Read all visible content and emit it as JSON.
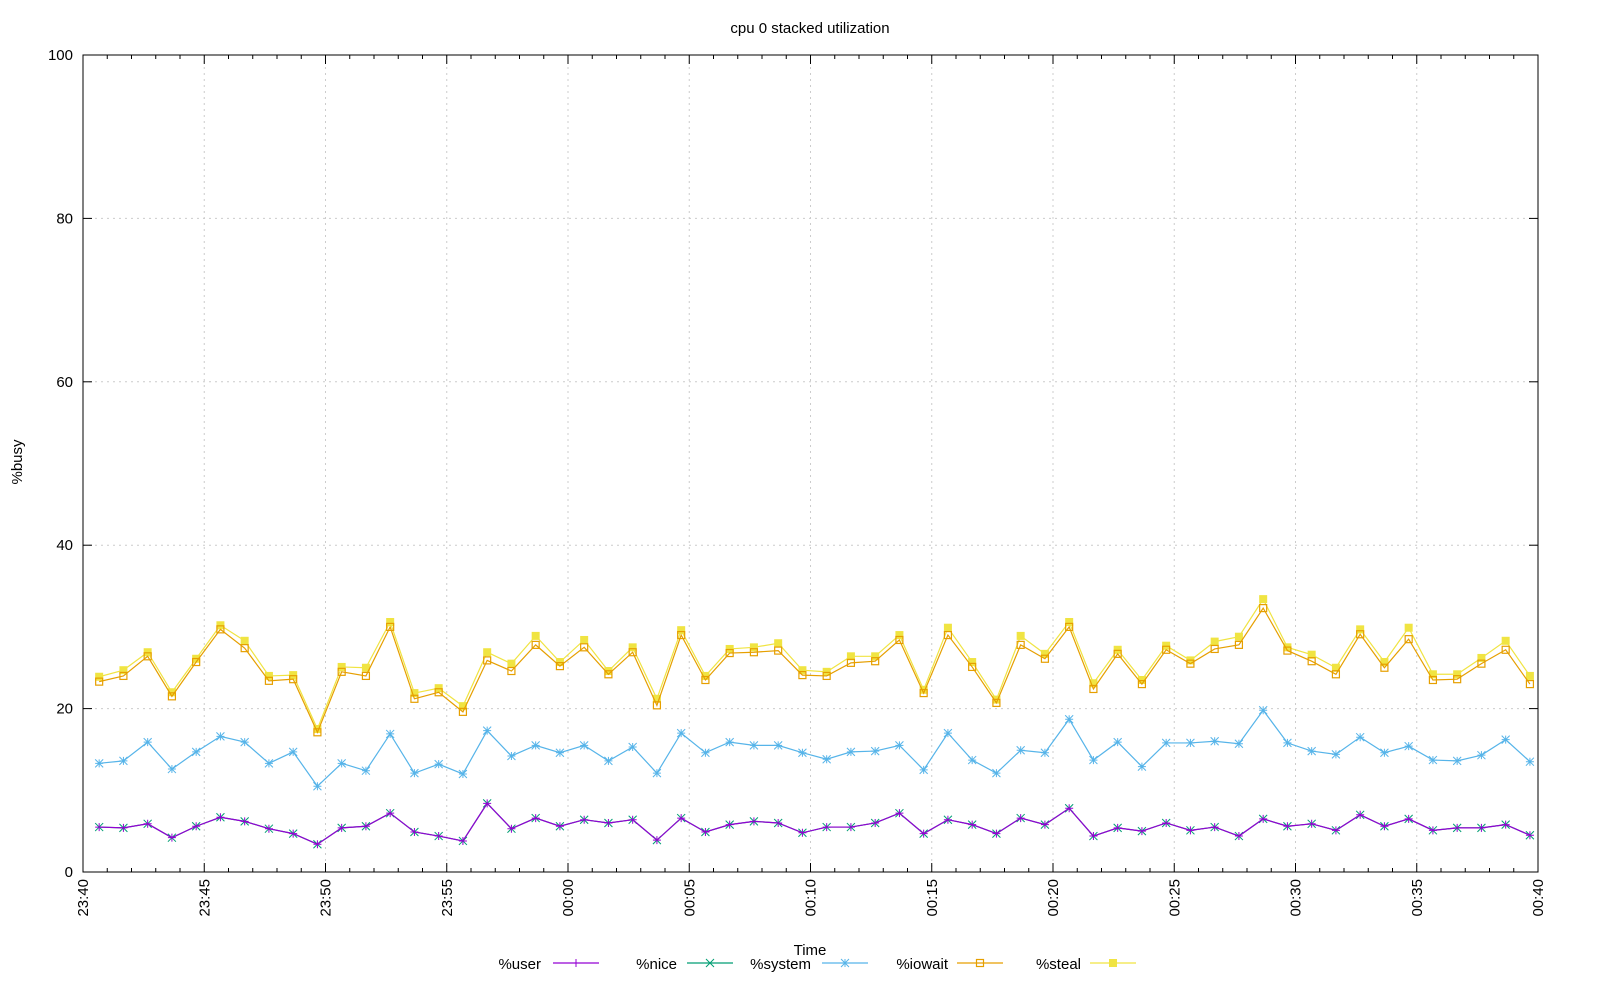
{
  "chart_data": {
    "type": "line",
    "title": "cpu 0 stacked utilization",
    "xlabel": "Time",
    "ylabel": "%busy",
    "ylim": [
      0,
      100
    ],
    "yticks": [
      "0",
      "20",
      "40",
      "60",
      "80",
      "100"
    ],
    "xlim_minutes_from_start": [
      0,
      60
    ],
    "xticks": [
      "23:40",
      "23:45",
      "23:50",
      "23:55",
      "00:00",
      "00:05",
      "00:10",
      "00:15",
      "00:20",
      "00:25",
      "00:30",
      "00:35",
      "00:40"
    ],
    "x_start": "23:40:40",
    "x_step_seconds": 60,
    "grid": true,
    "stacked": true,
    "values_are_cumulative": true,
    "legend_placement": "bottom",
    "series": [
      {
        "name": "%user",
        "color": "#9400d3",
        "marker": "plus",
        "values": [
          5.5,
          5.4,
          5.9,
          4.2,
          5.6,
          6.7,
          6.2,
          5.3,
          4.7,
          3.4,
          5.4,
          5.6,
          7.2,
          4.9,
          4.4,
          3.8,
          8.4,
          5.3,
          6.6,
          5.6,
          6.4,
          6.0,
          6.4,
          3.9,
          6.6,
          4.9,
          5.8,
          6.2,
          6.0,
          4.8,
          5.5,
          5.5,
          6.0,
          7.2,
          4.7,
          6.4,
          5.8,
          4.7,
          6.6,
          5.8,
          7.8,
          4.4,
          5.4,
          5.0,
          6.0,
          5.1,
          5.5,
          4.4,
          6.5,
          5.6,
          5.9,
          5.1,
          7.0,
          5.6,
          6.5,
          5.1,
          5.4,
          5.4,
          5.8,
          4.5
        ]
      },
      {
        "name": "%nice",
        "color": "#009e73",
        "marker": "cross",
        "values": [
          5.5,
          5.4,
          5.9,
          4.2,
          5.6,
          6.7,
          6.2,
          5.3,
          4.7,
          3.4,
          5.4,
          5.6,
          7.2,
          4.9,
          4.4,
          3.8,
          8.4,
          5.3,
          6.6,
          5.6,
          6.4,
          6.0,
          6.4,
          3.9,
          6.6,
          4.9,
          5.8,
          6.2,
          6.0,
          4.8,
          5.5,
          5.5,
          6.0,
          7.2,
          4.7,
          6.4,
          5.8,
          4.7,
          6.6,
          5.8,
          7.8,
          4.4,
          5.4,
          5.0,
          6.0,
          5.1,
          5.5,
          4.4,
          6.5,
          5.6,
          5.9,
          5.1,
          7.0,
          5.6,
          6.5,
          5.1,
          5.4,
          5.4,
          5.8,
          4.5
        ]
      },
      {
        "name": "%system",
        "color": "#56b4e9",
        "marker": "star",
        "values": [
          13.3,
          13.6,
          15.9,
          12.6,
          14.7,
          16.6,
          15.9,
          13.3,
          14.7,
          10.5,
          13.3,
          12.4,
          16.9,
          12.1,
          13.2,
          12.0,
          17.3,
          14.2,
          15.5,
          14.6,
          15.5,
          13.6,
          15.3,
          12.1,
          17.0,
          14.6,
          15.9,
          15.5,
          15.5,
          14.6,
          13.8,
          14.7,
          14.8,
          15.5,
          12.5,
          17.0,
          13.7,
          12.1,
          14.9,
          14.6,
          18.7,
          13.7,
          15.9,
          12.9,
          15.8,
          15.8,
          16.0,
          15.7,
          19.8,
          15.8,
          14.8,
          14.4,
          16.5,
          14.6,
          15.4,
          13.7,
          13.6,
          14.3,
          16.2,
          13.5
        ]
      },
      {
        "name": "%iowait",
        "color": "#e69f00",
        "marker": "open-square",
        "values": [
          23.3,
          24.0,
          26.4,
          21.5,
          25.7,
          29.7,
          27.4,
          23.4,
          23.6,
          17.1,
          24.5,
          24.0,
          30.0,
          21.2,
          22.0,
          19.6,
          25.9,
          24.6,
          27.8,
          25.2,
          27.5,
          24.2,
          26.9,
          20.4,
          29.0,
          23.5,
          26.8,
          26.9,
          27.1,
          24.1,
          24.0,
          25.6,
          25.8,
          28.4,
          21.9,
          29.0,
          25.1,
          20.7,
          27.8,
          26.1,
          30.0,
          22.4,
          26.7,
          23.0,
          27.2,
          25.5,
          27.3,
          27.8,
          32.3,
          27.1,
          25.8,
          24.2,
          29.1,
          25.0,
          28.5,
          23.5,
          23.6,
          25.5,
          27.2,
          23.0
        ]
      },
      {
        "name": "%steal",
        "color": "#f0e442",
        "marker": "filled-square",
        "values": [
          23.9,
          24.7,
          26.9,
          22.0,
          26.1,
          30.2,
          28.3,
          24.0,
          24.1,
          17.5,
          25.1,
          25.0,
          30.6,
          21.9,
          22.5,
          20.3,
          26.9,
          25.5,
          28.9,
          25.7,
          28.4,
          24.6,
          27.5,
          21.2,
          29.6,
          24.0,
          27.3,
          27.5,
          28.0,
          24.7,
          24.5,
          26.4,
          26.4,
          29.0,
          22.3,
          29.9,
          25.7,
          21.1,
          28.9,
          26.7,
          30.6,
          23.1,
          27.2,
          23.5,
          27.7,
          25.9,
          28.2,
          28.8,
          33.4,
          27.5,
          26.6,
          25.0,
          29.7,
          25.7,
          29.9,
          24.2,
          24.2,
          26.2,
          28.3,
          24.0
        ]
      }
    ]
  }
}
